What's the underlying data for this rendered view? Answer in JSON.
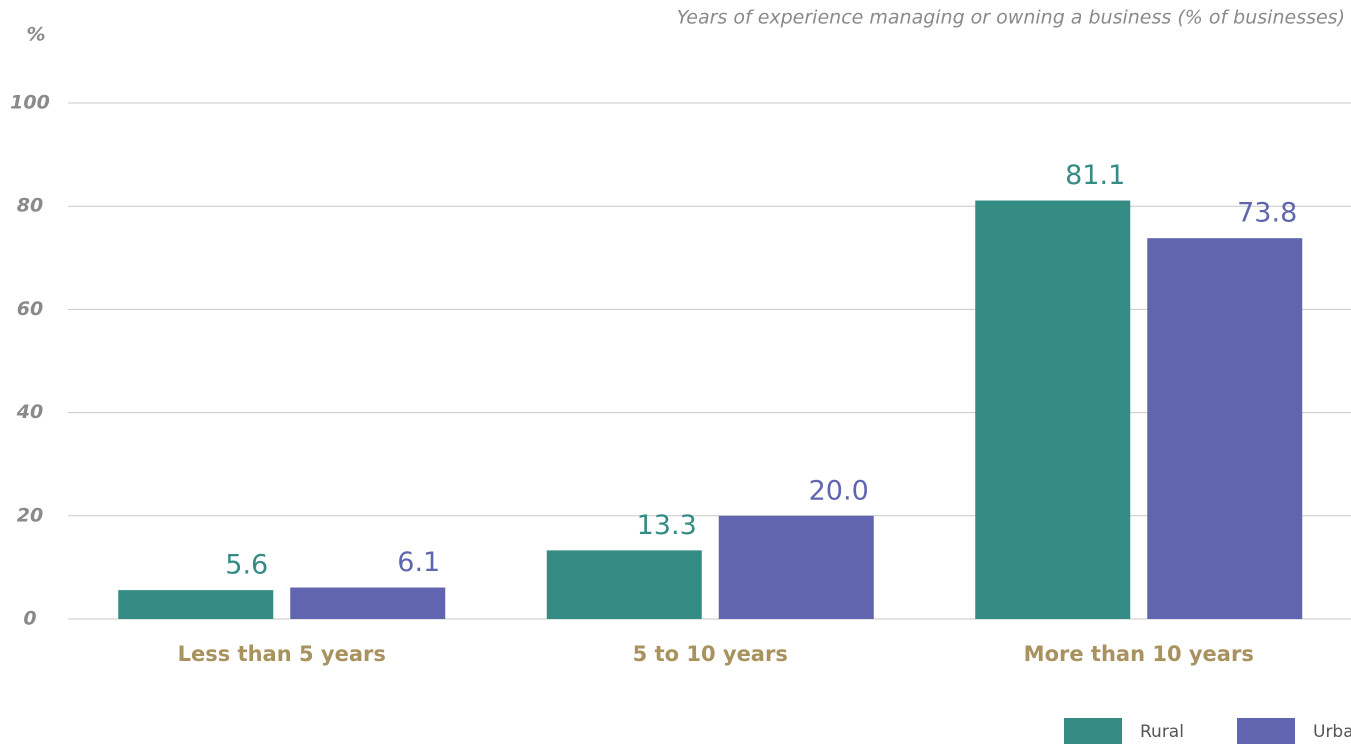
{
  "chart_data": {
    "type": "bar",
    "title": "Years of experience managing or owning a business (% of businesses)",
    "ylabel": "%",
    "categories": [
      "Less than 5 years",
      "5 to 10 years",
      "More than 10 years"
    ],
    "series": [
      {
        "name": "Rural",
        "color": "#358c84",
        "values": [
          5.6,
          13.3,
          81.1
        ],
        "value_labels": [
          "5.6",
          "13.3",
          "81.1"
        ]
      },
      {
        "name": "Urban",
        "color": "#6165b0",
        "values": [
          6.1,
          20.0,
          73.8
        ],
        "value_labels": [
          "6.1",
          "20.0",
          "73.8"
        ]
      }
    ],
    "ylim": [
      0,
      100
    ],
    "yticks": [
      0,
      20,
      40,
      60,
      80,
      100
    ],
    "grid": true,
    "legend": "bottom-right"
  }
}
